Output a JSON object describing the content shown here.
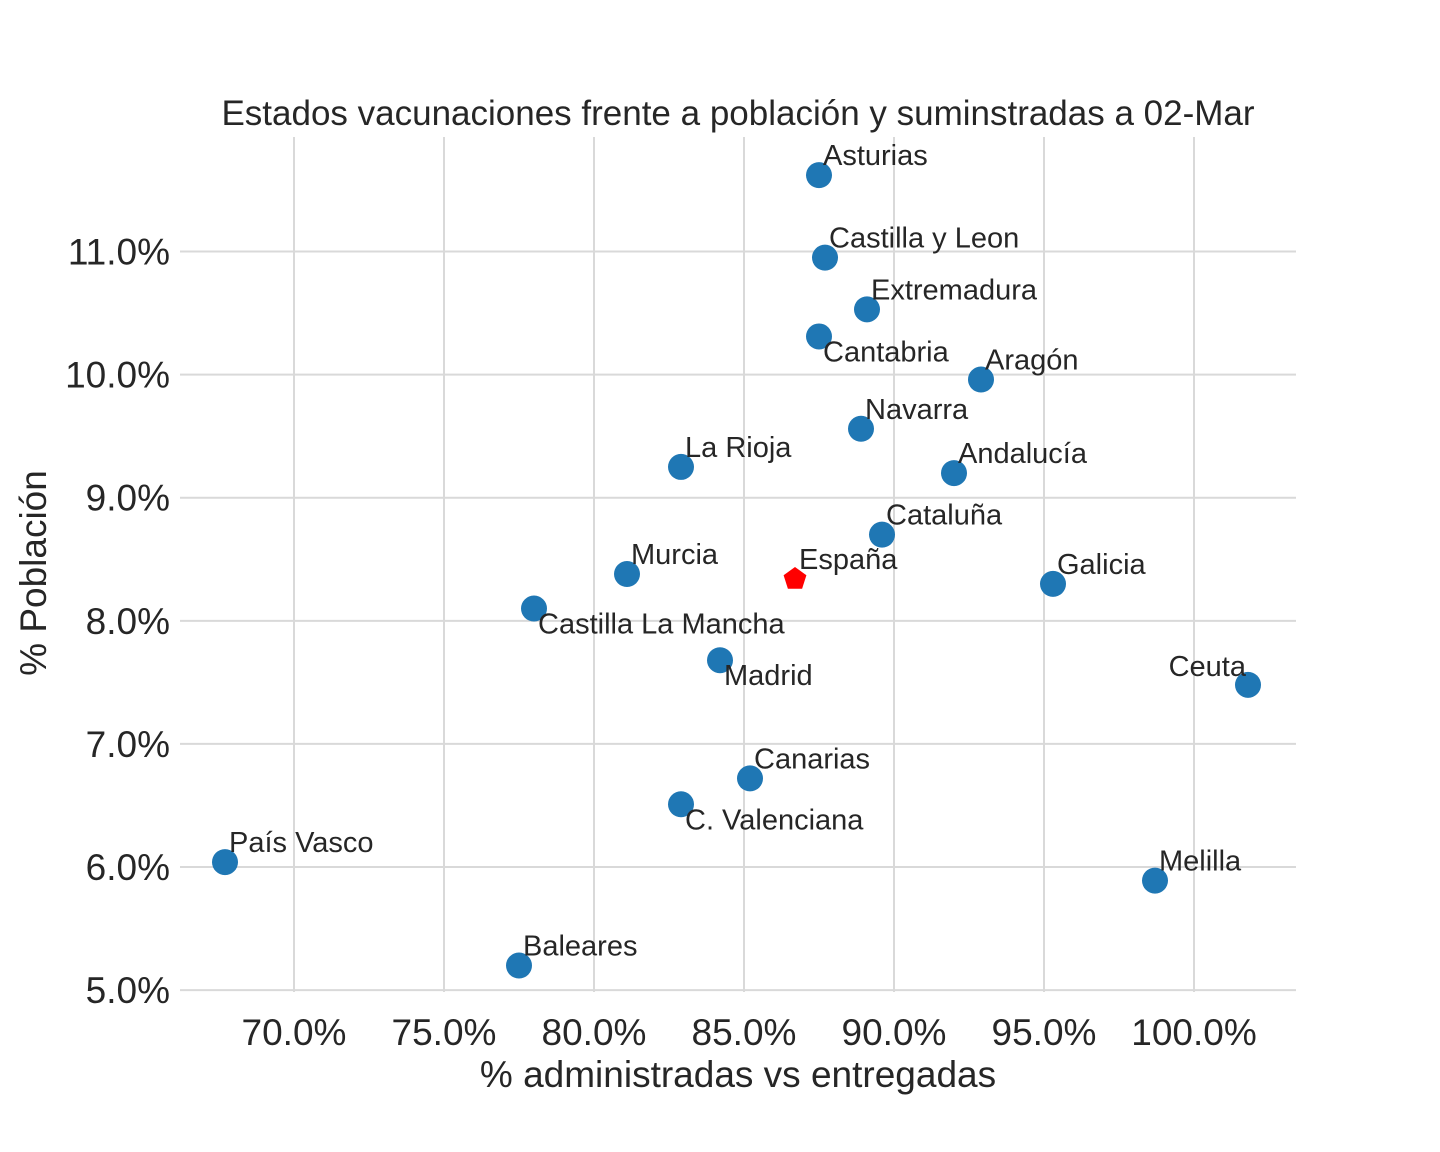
{
  "chart_data": {
    "type": "scatter",
    "title": "Estados vacunaciones frente a población y suminstradas a 02-Mar",
    "xlabel": "% administradas vs entregadas",
    "ylabel": "% Población",
    "xlim": [
      0.662,
      1.034
    ],
    "ylim": [
      0.04985,
      0.1193
    ],
    "x_ticks": [
      0.7,
      0.75,
      0.8,
      0.85,
      0.9,
      0.95,
      1.0
    ],
    "x_tick_labels": [
      "70.0%",
      "75.0%",
      "80.0%",
      "85.0%",
      "90.0%",
      "95.0%",
      "100.0%"
    ],
    "y_ticks": [
      0.05,
      0.06,
      0.07,
      0.08,
      0.09,
      0.1,
      0.11
    ],
    "y_tick_labels": [
      "5.0%",
      "6.0%",
      "7.0%",
      "8.0%",
      "9.0%",
      "10.0%",
      "11.0%"
    ],
    "grid": true,
    "legend": false,
    "colors": {
      "point": "#1f77b4",
      "highlight": "#ff0000",
      "grid": "#d9d9d9"
    },
    "series": [
      {
        "marker": "circle",
        "points": [
          {
            "name": "Asturias",
            "x": 0.875,
            "y": 0.1162,
            "label_pos": "above-right"
          },
          {
            "name": "Castilla y Leon",
            "x": 0.877,
            "y": 0.1095,
            "label_pos": "above-right"
          },
          {
            "name": "Extremadura",
            "x": 0.891,
            "y": 0.1053,
            "label_pos": "above-right"
          },
          {
            "name": "Cantabria",
            "x": 0.875,
            "y": 0.1031,
            "label_pos": "below-right"
          },
          {
            "name": "Aragón",
            "x": 0.929,
            "y": 0.0996,
            "label_pos": "above-right"
          },
          {
            "name": "Navarra",
            "x": 0.889,
            "y": 0.0956,
            "label_pos": "above-right"
          },
          {
            "name": "La Rioja",
            "x": 0.829,
            "y": 0.0925,
            "label_pos": "above-right"
          },
          {
            "name": "Andalucía",
            "x": 0.92,
            "y": 0.092,
            "label_pos": "above-right"
          },
          {
            "name": "Cataluña",
            "x": 0.896,
            "y": 0.087,
            "label_pos": "above-right"
          },
          {
            "name": "Murcia",
            "x": 0.811,
            "y": 0.0838,
            "label_pos": "above-right"
          },
          {
            "name": "Galicia",
            "x": 0.953,
            "y": 0.083,
            "label_pos": "above-right"
          },
          {
            "name": "Castilla La Mancha",
            "x": 0.78,
            "y": 0.081,
            "label_pos": "below-right"
          },
          {
            "name": "Madrid",
            "x": 0.842,
            "y": 0.0768,
            "label_pos": "below-right"
          },
          {
            "name": "Ceuta",
            "x": 1.018,
            "y": 0.0748,
            "label_pos": "above-left"
          },
          {
            "name": "Canarias",
            "x": 0.852,
            "y": 0.0672,
            "label_pos": "above-right"
          },
          {
            "name": "C. Valenciana",
            "x": 0.829,
            "y": 0.0651,
            "label_pos": "below-right"
          },
          {
            "name": "País Vasco",
            "x": 0.677,
            "y": 0.0604,
            "label_pos": "above-right"
          },
          {
            "name": "Melilla",
            "x": 0.987,
            "y": 0.0589,
            "label_pos": "above-right"
          },
          {
            "name": "Baleares",
            "x": 0.775,
            "y": 0.052,
            "label_pos": "above-right"
          }
        ]
      },
      {
        "marker": "pentagon",
        "points": [
          {
            "name": "España",
            "x": 0.867,
            "y": 0.0834,
            "label_pos": "above-right"
          }
        ]
      }
    ]
  }
}
